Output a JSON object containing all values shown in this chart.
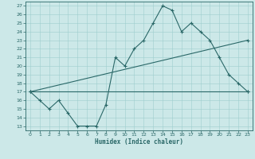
{
  "title": "",
  "xlabel": "Humidex (Indice chaleur)",
  "ylabel": "",
  "background_color": "#cce8e8",
  "line_color": "#2a6868",
  "xlim": [
    -0.5,
    23.5
  ],
  "ylim": [
    12.5,
    27.5
  ],
  "yticks": [
    13,
    14,
    15,
    16,
    17,
    18,
    19,
    20,
    21,
    22,
    23,
    24,
    25,
    26,
    27
  ],
  "xticks": [
    0,
    1,
    2,
    3,
    4,
    5,
    6,
    7,
    8,
    9,
    10,
    11,
    12,
    13,
    14,
    15,
    16,
    17,
    18,
    19,
    20,
    21,
    22,
    23
  ],
  "line1_x": [
    0,
    1,
    2,
    3,
    4,
    5,
    6,
    7,
    8,
    9,
    10,
    11,
    12,
    13,
    14,
    15,
    16,
    17,
    18,
    19,
    20,
    21,
    22,
    23
  ],
  "line1_y": [
    17,
    16,
    15,
    16,
    14.5,
    13,
    13,
    13,
    15.5,
    21,
    20,
    22,
    23,
    25,
    27,
    26.5,
    24,
    25,
    24,
    23,
    21,
    19,
    18,
    17
  ],
  "line2_x": [
    0,
    23
  ],
  "line2_y": [
    17,
    17
  ],
  "line3_x": [
    0,
    23
  ],
  "line3_y": [
    17,
    23
  ]
}
